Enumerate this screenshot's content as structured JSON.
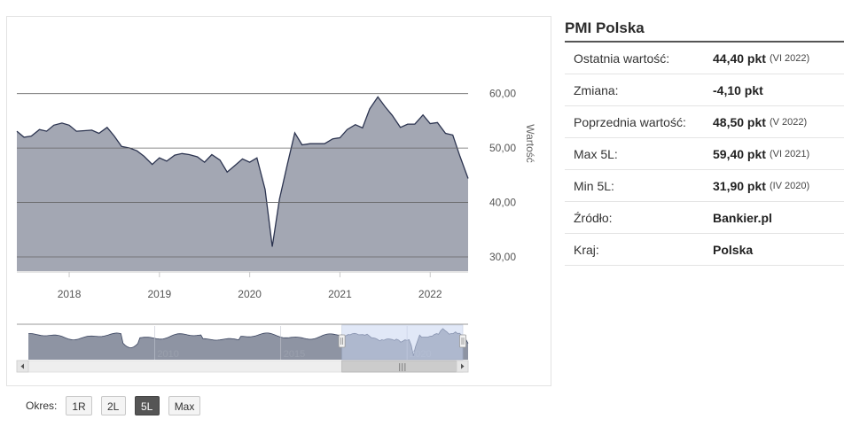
{
  "chart_data": {
    "type": "area",
    "ylabel": "Wartość",
    "y_ticks": [
      "30,00",
      "40,00",
      "50,00",
      "60,00"
    ],
    "ylim": [
      27.4,
      67.6
    ],
    "x_ticks": [
      "2018",
      "2019",
      "2020",
      "2021",
      "2022"
    ],
    "x_range": [
      2017.42,
      2022.42
    ],
    "x": [
      2017.42,
      2017.5,
      2017.58,
      2017.67,
      2017.75,
      2017.83,
      2017.92,
      2018.0,
      2018.08,
      2018.17,
      2018.25,
      2018.33,
      2018.42,
      2018.5,
      2018.58,
      2018.67,
      2018.75,
      2018.83,
      2018.92,
      2019.0,
      2019.08,
      2019.17,
      2019.25,
      2019.33,
      2019.42,
      2019.5,
      2019.58,
      2019.67,
      2019.75,
      2019.83,
      2019.92,
      2020.0,
      2020.08,
      2020.17,
      2020.25,
      2020.33,
      2020.42,
      2020.5,
      2020.58,
      2020.67,
      2020.75,
      2020.83,
      2020.92,
      2021.0,
      2021.08,
      2021.17,
      2021.25,
      2021.33,
      2021.42,
      2021.5,
      2021.58,
      2021.67,
      2021.75,
      2021.83,
      2021.92,
      2022.0,
      2022.08,
      2022.17,
      2022.25,
      2022.33,
      2022.42
    ],
    "values": [
      53.1,
      52.0,
      52.2,
      53.4,
      53.1,
      54.2,
      54.6,
      54.2,
      53.1,
      53.2,
      53.3,
      52.7,
      53.8,
      52.2,
      50.3,
      50.0,
      49.5,
      48.5,
      47.0,
      48.2,
      47.6,
      48.7,
      49.0,
      48.8,
      48.4,
      47.4,
      48.8,
      47.8,
      45.6,
      46.7,
      48.0,
      47.4,
      48.2,
      42.4,
      31.9,
      40.6,
      47.2,
      52.8,
      50.6,
      50.8,
      50.8,
      50.8,
      51.7,
      51.9,
      53.4,
      54.3,
      53.7,
      57.2,
      59.4,
      57.6,
      56.0,
      53.8,
      54.4,
      54.4,
      56.1,
      54.5,
      54.7,
      52.7,
      52.4,
      48.5,
      44.4
    ],
    "nav_x_ticks": [
      "2010",
      "2015",
      "2020"
    ],
    "grid": true,
    "colors": {
      "fill": "#a3a7b3",
      "line": "#2c3450",
      "grid": "#666666",
      "nav_fill": "#8e94a3",
      "nav_select": "#c9d6f2"
    }
  },
  "navigator": {
    "scroll_grip": "|||"
  },
  "period": {
    "label": "Okres:",
    "buttons": [
      "1R",
      "2L",
      "5L",
      "Max"
    ],
    "active": "5L"
  },
  "info": {
    "title": "PMI Polska",
    "rows": [
      {
        "key": "Ostatnia wartość:",
        "value": "44,40 pkt",
        "detail": "(VI 2022)"
      },
      {
        "key": "Zmiana:",
        "value": "-4,10 pkt",
        "detail": ""
      },
      {
        "key": "Poprzednia wartość:",
        "value": "48,50 pkt",
        "detail": "(V 2022)"
      },
      {
        "key": "Max 5L:",
        "value": "59,40 pkt",
        "detail": "(VI 2021)"
      },
      {
        "key": "Min 5L:",
        "value": "31,90 pkt",
        "detail": "(IV 2020)"
      },
      {
        "key": "Źródło:",
        "value": "Bankier.pl",
        "detail": ""
      },
      {
        "key": "Kraj:",
        "value": "Polska",
        "detail": ""
      }
    ]
  }
}
